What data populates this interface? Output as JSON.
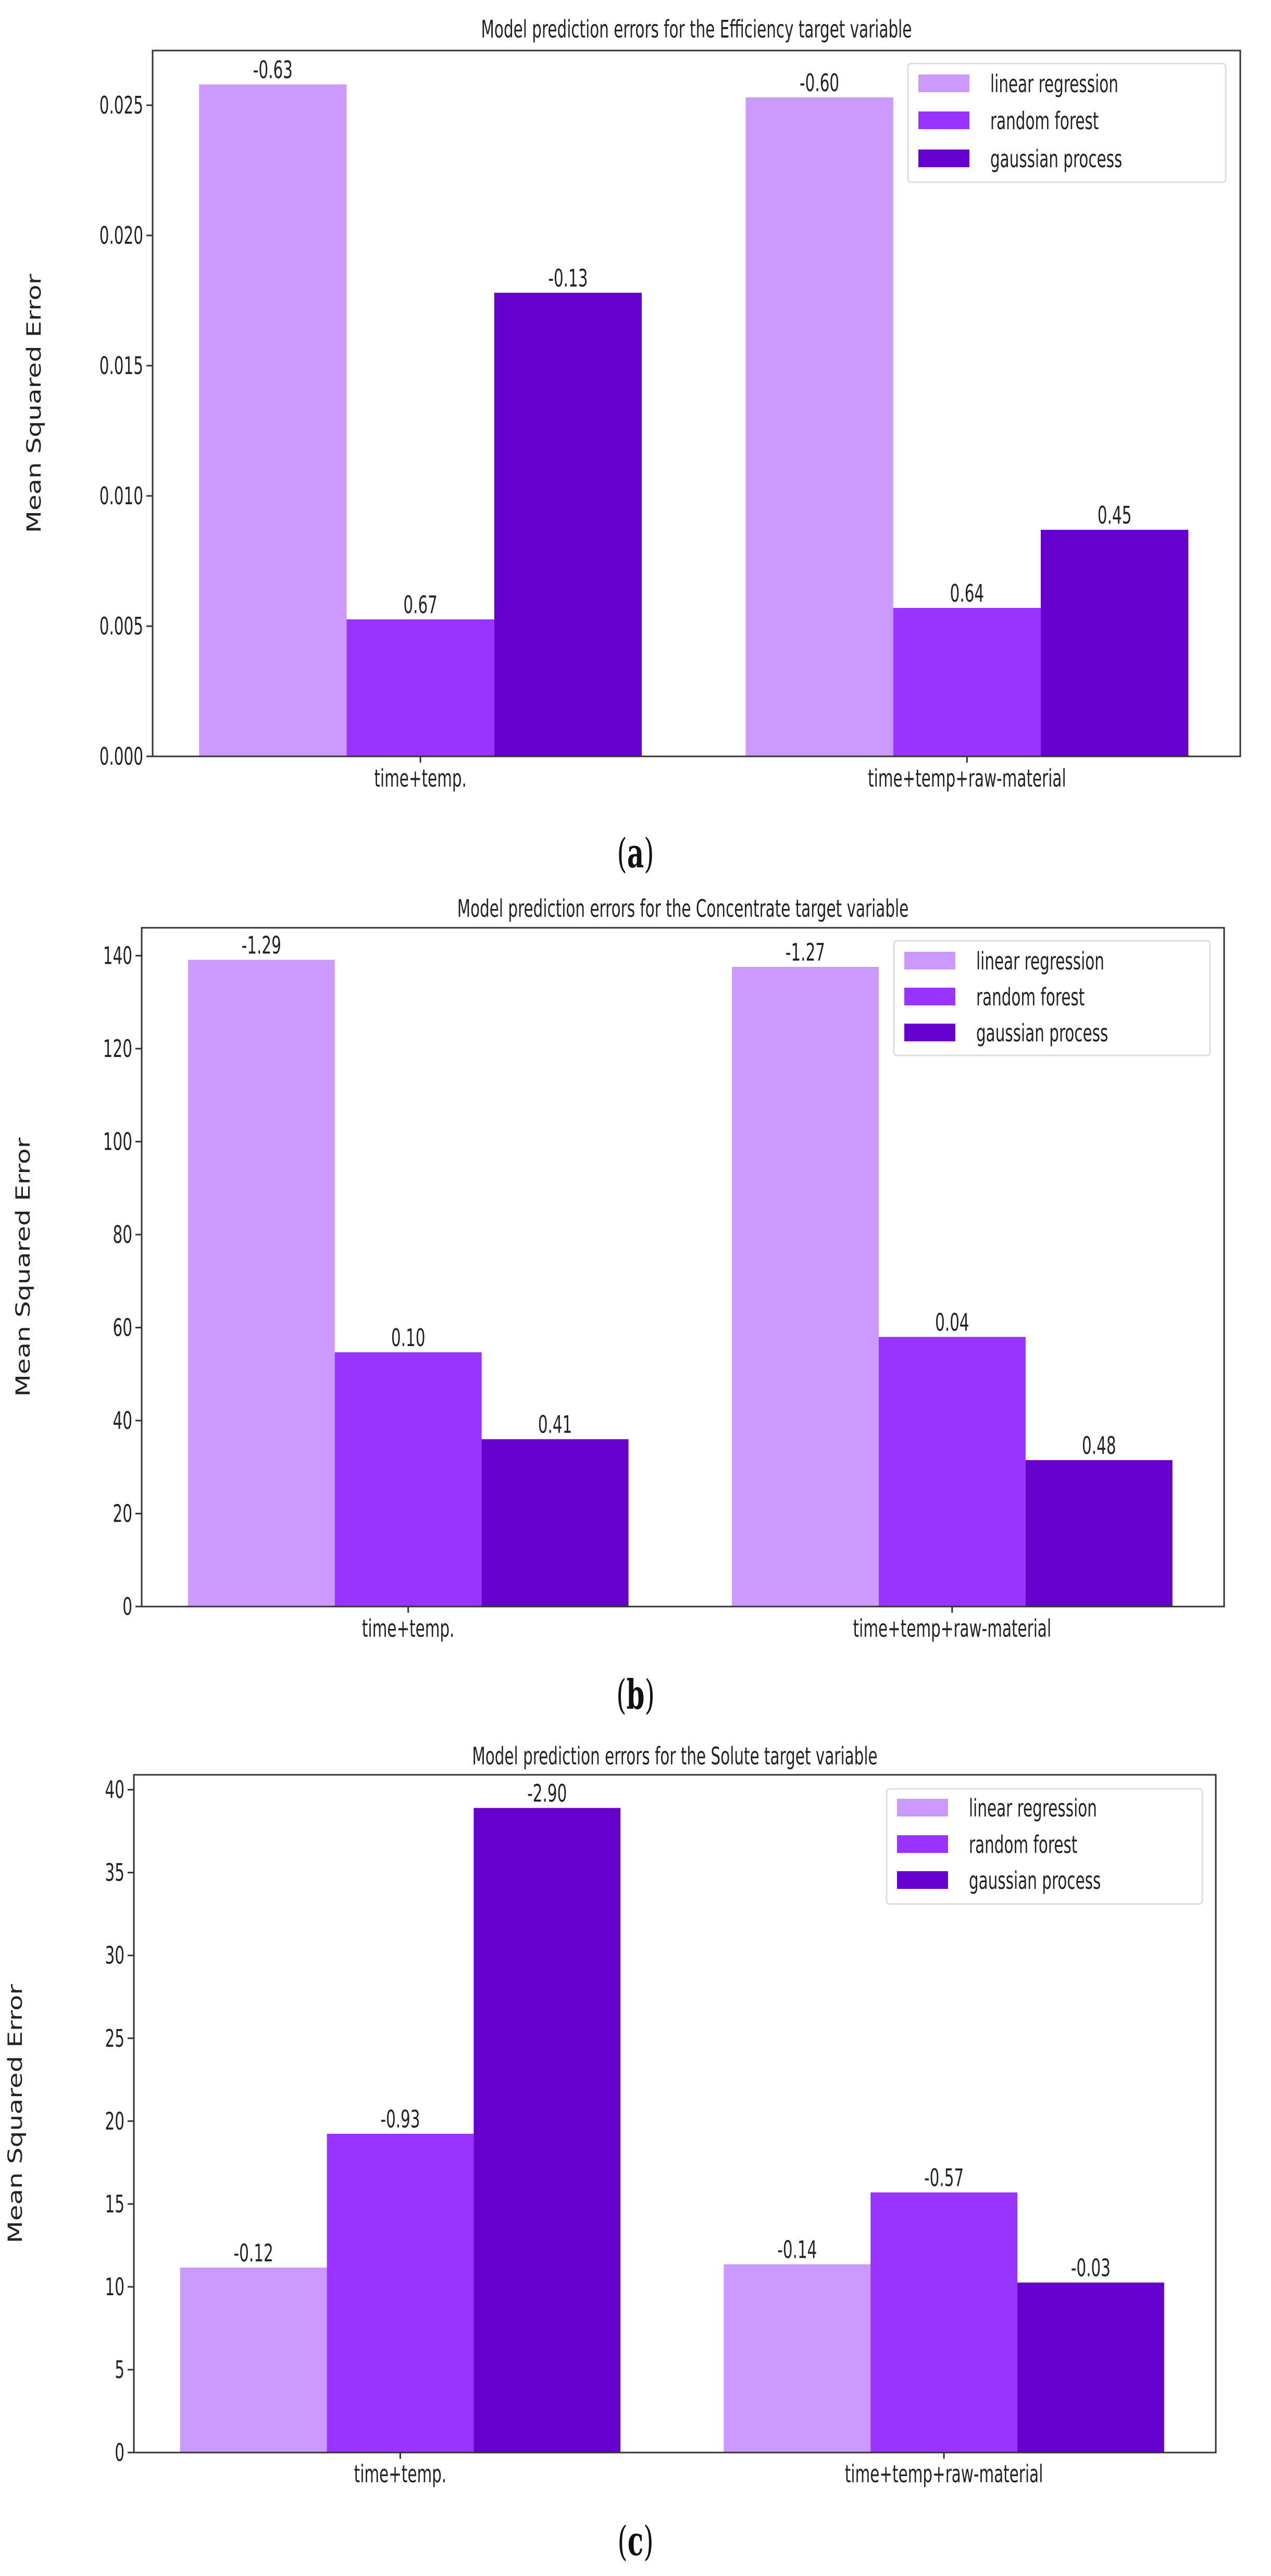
{
  "colors": {
    "linear regression": "#cc99ff",
    "random forest": "#9933ff",
    "gaussian process": "#6600cc"
  },
  "chart_data": [
    {
      "type": "bar",
      "caption_letter": "a",
      "title": "Model prediction errors for the Efficiency target variable",
      "xlabel": "",
      "ylabel": "Mean Squared Error",
      "categories": [
        "time+temp.",
        "time+temp+raw-material"
      ],
      "series": [
        {
          "name": "linear regression",
          "values": [
            0.0258,
            0.0253
          ],
          "labels": [
            "-0.63",
            "-0.60"
          ]
        },
        {
          "name": "random forest",
          "values": [
            0.00526,
            0.0057
          ],
          "labels": [
            "0.67",
            "0.64"
          ]
        },
        {
          "name": "gaussian process",
          "values": [
            0.0178,
            0.0087
          ],
          "labels": [
            "-0.13",
            "0.45"
          ]
        }
      ],
      "ylim": [
        0,
        0.0271
      ],
      "yticks": [
        "0.000",
        "0.005",
        "0.010",
        "0.015",
        "0.020",
        "0.025"
      ],
      "ytick_values": [
        0,
        0.005,
        0.01,
        0.015,
        0.02,
        0.025
      ],
      "legend_placement": "top-right",
      "grid": false
    },
    {
      "type": "bar",
      "caption_letter": "b",
      "title": "Model prediction errors for the Concentrate target variable",
      "xlabel": "",
      "ylabel": "Mean Squared Error",
      "categories": [
        "time+temp.",
        "time+temp+raw-material"
      ],
      "series": [
        {
          "name": "linear regression",
          "values": [
            139.1,
            137.6
          ],
          "labels": [
            "-1.29",
            "-1.27"
          ]
        },
        {
          "name": "random forest",
          "values": [
            54.7,
            58.0
          ],
          "labels": [
            "0.10",
            "0.04"
          ]
        },
        {
          "name": "gaussian process",
          "values": [
            36.0,
            31.5
          ],
          "labels": [
            "0.41",
            "0.48"
          ]
        }
      ],
      "ylim": [
        0,
        146
      ],
      "yticks": [
        "0",
        "20",
        "40",
        "60",
        "80",
        "100",
        "120",
        "140"
      ],
      "ytick_values": [
        0,
        20,
        40,
        60,
        80,
        100,
        120,
        140
      ],
      "legend_placement": "top-right",
      "grid": false
    },
    {
      "type": "bar",
      "caption_letter": "c",
      "title": "Model prediction errors for the Solute target variable",
      "xlabel": "",
      "ylabel": "Mean Squared Error",
      "categories": [
        "time+temp.",
        "time+temp+raw-material"
      ],
      "series": [
        {
          "name": "linear regression",
          "values": [
            11.16,
            11.36
          ],
          "labels": [
            "-0.12",
            "-0.14"
          ]
        },
        {
          "name": "random forest",
          "values": [
            19.24,
            15.7
          ],
          "labels": [
            "-0.93",
            "-0.57"
          ]
        },
        {
          "name": "gaussian process",
          "values": [
            38.9,
            10.26
          ],
          "labels": [
            "-2.90",
            "-0.03"
          ]
        }
      ],
      "ylim": [
        0,
        40.9
      ],
      "yticks": [
        "0",
        "5",
        "10",
        "15",
        "20",
        "25",
        "30",
        "35",
        "40"
      ],
      "ytick_values": [
        0,
        5,
        10,
        15,
        20,
        25,
        30,
        35,
        40
      ],
      "legend_placement": "top-right",
      "grid": false
    }
  ]
}
